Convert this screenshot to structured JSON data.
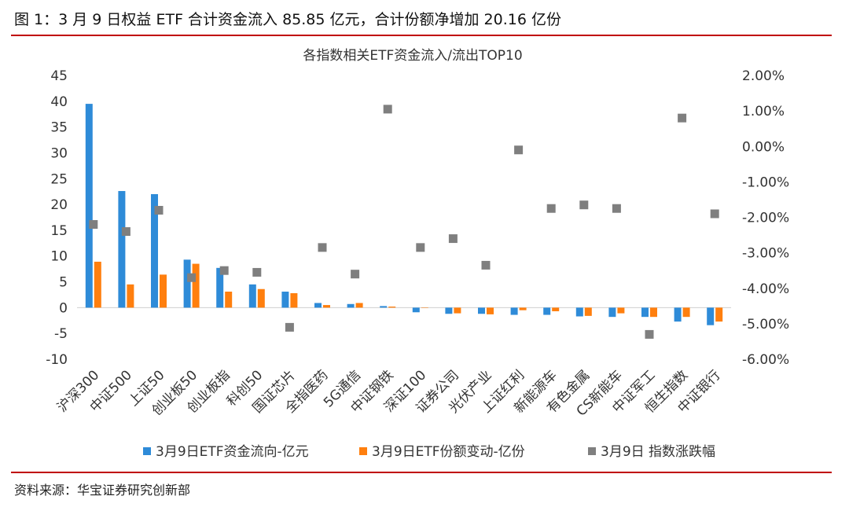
{
  "figure_title": "图 1：3 月 9 日权益 ETF 合计资金流入 85.85 亿元，合计份额净增加 20.16 亿份",
  "source": "资料来源：华宝证券研究创新部",
  "colors": {
    "rule": "#c00000",
    "inflow": "#2e8bd8",
    "shares": "#ff7f0e",
    "change": "#7f7f7f"
  },
  "chart_data": {
    "type": "bar",
    "title": "各指数相关ETF资金流入/流出TOP10",
    "categories": [
      "沪深300",
      "中证500",
      "上证50",
      "创业板50",
      "创业板指",
      "科创50",
      "国证芯片",
      "全指医药",
      "5G通信",
      "中证钢铁",
      "深证100",
      "证券公司",
      "光伏产业",
      "上证红利",
      "新能源车",
      "有色金属",
      "CS新能车",
      "中证军工",
      "恒生指数",
      "中证银行"
    ],
    "series": [
      {
        "name": "3月9日ETF资金流向-亿元",
        "type": "bar",
        "axis": "left",
        "values": [
          39.5,
          22.6,
          22.0,
          9.3,
          7.7,
          4.5,
          3.1,
          0.9,
          0.7,
          0.3,
          -0.9,
          -1.2,
          -1.2,
          -1.4,
          -1.4,
          -1.7,
          -1.8,
          -1.8,
          -2.7,
          -3.4
        ]
      },
      {
        "name": "3月9日ETF份额变动-亿份",
        "type": "bar",
        "axis": "left",
        "values": [
          8.9,
          4.5,
          6.4,
          8.5,
          3.1,
          3.6,
          2.8,
          0.5,
          0.9,
          0.2,
          0.0,
          -1.1,
          -1.3,
          -0.5,
          -0.7,
          -1.6,
          -1.1,
          -1.8,
          -1.8,
          -2.7
        ]
      },
      {
        "name": "3月9日 指数涨跌幅",
        "type": "scatter",
        "axis": "right",
        "values": [
          -2.2,
          -2.4,
          -1.8,
          -3.7,
          -3.5,
          -3.55,
          -5.1,
          -2.85,
          -3.6,
          1.05,
          -2.85,
          -2.6,
          -3.35,
          -0.1,
          -1.75,
          -1.65,
          -1.75,
          -5.3,
          0.8,
          -1.9
        ]
      }
    ],
    "y_left": {
      "min": -10,
      "max": 45,
      "step": 5,
      "ticks": [
        "45",
        "40",
        "35",
        "30",
        "25",
        "20",
        "15",
        "10",
        "5",
        "0",
        "-5",
        "-10"
      ]
    },
    "y_right": {
      "min": -6,
      "max": 2,
      "step": 1,
      "ticks": [
        "2.00%",
        "1.00%",
        "0.00%",
        "-1.00%",
        "-2.00%",
        "-3.00%",
        "-4.00%",
        "-5.00%",
        "-6.00%"
      ]
    },
    "grid": false,
    "legend": "bottom"
  }
}
